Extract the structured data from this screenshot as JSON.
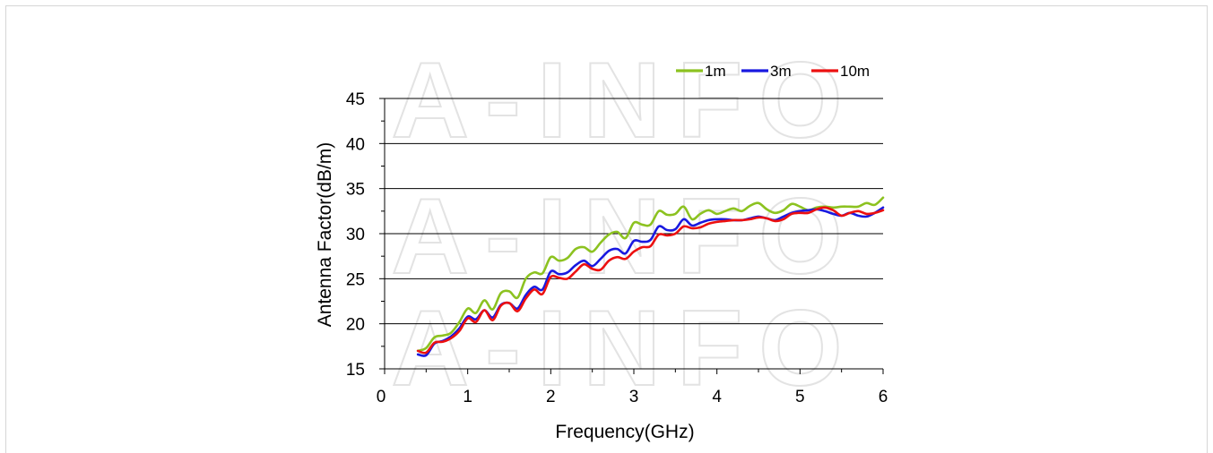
{
  "chart_data": {
    "type": "line",
    "xlabel": "Frequency(GHz)",
    "ylabel": "Antenna Factor(dB/m)",
    "xlim": [
      0,
      6
    ],
    "ylim": [
      15,
      45
    ],
    "xticks": [
      "0",
      "1",
      "2",
      "3",
      "4",
      "5",
      "6"
    ],
    "yticks": [
      "15",
      "20",
      "25",
      "30",
      "35",
      "40",
      "45"
    ],
    "grid": "horizontal",
    "legend_position": "top-right",
    "watermark": "A-INFO",
    "series": [
      {
        "name": "1m",
        "color": "#8cc220",
        "x": [
          0.4,
          0.5,
          0.6,
          0.7,
          0.8,
          0.9,
          1.0,
          1.1,
          1.2,
          1.3,
          1.4,
          1.5,
          1.6,
          1.7,
          1.8,
          1.9,
          2.0,
          2.1,
          2.2,
          2.3,
          2.4,
          2.5,
          2.6,
          2.7,
          2.8,
          2.9,
          3.0,
          3.1,
          3.2,
          3.3,
          3.4,
          3.5,
          3.6,
          3.7,
          3.8,
          3.9,
          4.0,
          4.1,
          4.2,
          4.3,
          4.4,
          4.5,
          4.6,
          4.7,
          4.8,
          4.9,
          5.0,
          5.1,
          5.2,
          5.3,
          5.4,
          5.5,
          5.6,
          5.7,
          5.8,
          5.9,
          6.0
        ],
        "values": [
          17.0,
          17.3,
          18.5,
          18.7,
          19.0,
          20.2,
          21.7,
          21.2,
          22.6,
          21.6,
          23.4,
          23.6,
          22.9,
          25.0,
          25.7,
          25.6,
          27.4,
          27.0,
          27.3,
          28.3,
          28.5,
          28.0,
          29.0,
          29.9,
          30.2,
          29.5,
          31.2,
          31.0,
          31.0,
          32.5,
          32.1,
          32.2,
          33.0,
          31.6,
          32.2,
          32.6,
          32.2,
          32.5,
          32.8,
          32.5,
          33.1,
          33.4,
          32.7,
          32.3,
          32.6,
          33.3,
          33.0,
          32.6,
          32.9,
          33.0,
          32.9,
          33.0,
          33.0,
          33.0,
          33.4,
          33.2,
          34.0
        ]
      },
      {
        "name": "3m",
        "color": "#1919e0",
        "x": [
          0.4,
          0.5,
          0.6,
          0.7,
          0.8,
          0.9,
          1.0,
          1.1,
          1.2,
          1.3,
          1.4,
          1.5,
          1.6,
          1.7,
          1.8,
          1.9,
          2.0,
          2.1,
          2.2,
          2.3,
          2.4,
          2.5,
          2.6,
          2.7,
          2.8,
          2.9,
          3.0,
          3.1,
          3.2,
          3.3,
          3.4,
          3.5,
          3.6,
          3.7,
          3.8,
          3.9,
          4.0,
          4.1,
          4.2,
          4.3,
          4.4,
          4.5,
          4.6,
          4.7,
          4.8,
          4.9,
          5.0,
          5.1,
          5.2,
          5.3,
          5.4,
          5.5,
          5.6,
          5.7,
          5.8,
          5.9,
          6.0
        ],
        "values": [
          16.6,
          16.5,
          17.8,
          18.1,
          18.6,
          19.5,
          20.8,
          20.5,
          21.5,
          20.7,
          22.1,
          22.3,
          21.7,
          23.2,
          24.1,
          23.8,
          25.8,
          25.5,
          25.7,
          26.5,
          27.0,
          26.4,
          27.2,
          28.1,
          28.3,
          27.8,
          29.2,
          29.1,
          29.3,
          30.8,
          30.4,
          30.5,
          31.6,
          30.9,
          31.2,
          31.5,
          31.6,
          31.6,
          31.5,
          31.5,
          31.7,
          31.9,
          31.7,
          31.5,
          31.9,
          32.3,
          32.5,
          32.6,
          32.7,
          32.5,
          32.2,
          32.0,
          32.3,
          32.0,
          31.9,
          32.3,
          32.9
        ]
      },
      {
        "name": "10m",
        "color": "#ec1010",
        "x": [
          0.4,
          0.5,
          0.6,
          0.7,
          0.8,
          0.9,
          1.0,
          1.1,
          1.2,
          1.3,
          1.4,
          1.5,
          1.6,
          1.7,
          1.8,
          1.9,
          2.0,
          2.1,
          2.2,
          2.3,
          2.4,
          2.5,
          2.6,
          2.7,
          2.8,
          2.9,
          3.0,
          3.1,
          3.2,
          3.3,
          3.4,
          3.5,
          3.6,
          3.7,
          3.8,
          3.9,
          4.0,
          4.1,
          4.2,
          4.3,
          4.4,
          4.5,
          4.6,
          4.7,
          4.8,
          4.9,
          5.0,
          5.1,
          5.2,
          5.3,
          5.4,
          5.5,
          5.6,
          5.7,
          5.8,
          5.9,
          6.0
        ],
        "values": [
          17.0,
          16.8,
          17.9,
          18.0,
          18.4,
          19.2,
          20.6,
          20.2,
          21.5,
          20.4,
          22.0,
          22.3,
          21.4,
          22.8,
          23.8,
          23.3,
          25.2,
          25.1,
          25.0,
          25.8,
          26.6,
          26.1,
          26.0,
          27.0,
          27.4,
          27.2,
          28.0,
          28.5,
          28.6,
          29.9,
          29.8,
          30.0,
          30.8,
          30.6,
          30.7,
          31.1,
          31.3,
          31.4,
          31.5,
          31.5,
          31.6,
          31.8,
          31.7,
          31.4,
          31.6,
          32.2,
          32.3,
          32.3,
          32.7,
          32.9,
          32.6,
          32.0,
          32.3,
          32.5,
          32.2,
          32.3,
          32.6
        ]
      }
    ]
  }
}
